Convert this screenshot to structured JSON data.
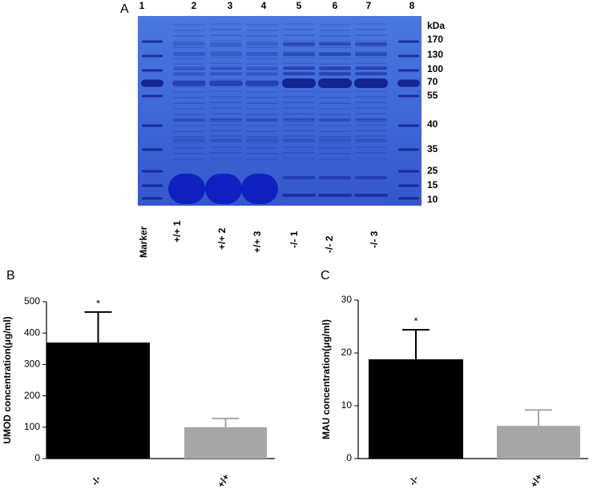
{
  "gel": {
    "label": "A",
    "lane_numbers": [
      "1",
      "2",
      "3",
      "4",
      "5",
      "6",
      "7",
      "8"
    ],
    "kda_unit": "kDa",
    "kda_markers": [
      "170",
      "130",
      "100",
      "70",
      "55",
      "40",
      "35",
      "25",
      "15",
      "10"
    ],
    "lane_labels": [
      "Marker",
      "+/+ 1",
      "+/+ 2",
      "+/+ 3",
      "-/- 1",
      "-/- 2",
      "-/- 3"
    ]
  },
  "chart_data": [
    {
      "type": "bar",
      "label": "B",
      "y_label": "UMOD concentration(μg/ml)",
      "categories": [
        "-/-",
        "+/+"
      ],
      "values": [
        370,
        100
      ],
      "errors": [
        97,
        28
      ],
      "colors": [
        "#000000",
        "#a6a6a6"
      ],
      "significance_label": "*",
      "ylim": [
        0,
        500
      ],
      "yticks": [
        0,
        100,
        200,
        300,
        400,
        500
      ]
    },
    {
      "type": "bar",
      "label": "C",
      "y_label": "MAU concentration(μg/ml)",
      "categories": [
        "-/-",
        "+/+"
      ],
      "values": [
        18.8,
        6.2
      ],
      "errors": [
        5.6,
        3.0
      ],
      "colors": [
        "#000000",
        "#a6a6a6"
      ],
      "significance_label": "*",
      "ylim": [
        0,
        30
      ],
      "yticks": [
        0,
        10,
        20,
        30
      ]
    }
  ]
}
